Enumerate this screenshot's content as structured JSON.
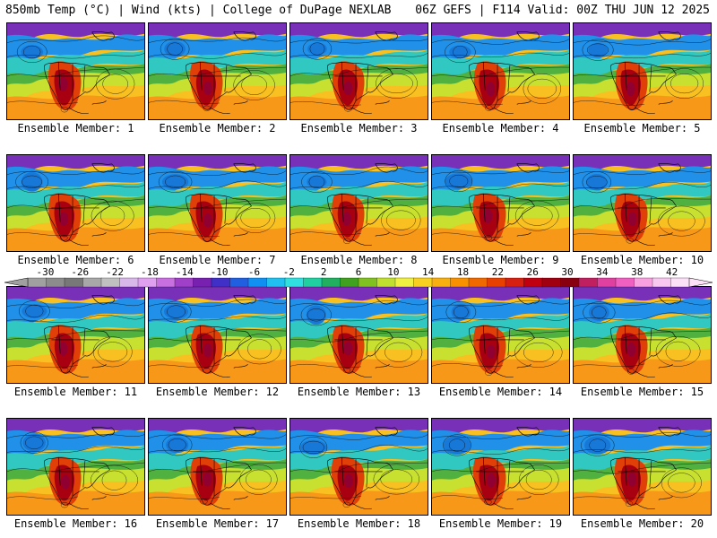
{
  "header": {
    "left": "850mb Temp (°C) | Wind (kts) | College of DuPage NEXLAB",
    "right": "06Z GEFS | F114 Valid: 00Z THU JUN 12 2025"
  },
  "members": [
    "Ensemble Member: 1",
    "Ensemble Member: 2",
    "Ensemble Member: 3",
    "Ensemble Member: 4",
    "Ensemble Member: 5",
    "Ensemble Member: 6",
    "Ensemble Member: 7",
    "Ensemble Member: 8",
    "Ensemble Member: 9",
    "Ensemble Member: 10",
    "Ensemble Member: 11",
    "Ensemble Member: 12",
    "Ensemble Member: 13",
    "Ensemble Member: 14",
    "Ensemble Member: 15",
    "Ensemble Member: 16",
    "Ensemble Member: 17",
    "Ensemble Member: 18",
    "Ensemble Member: 19",
    "Ensemble Member: 20"
  ],
  "colorbar": {
    "tick_labels": [
      "-30",
      "-26",
      "-22",
      "-18",
      "-14",
      "-10",
      "-6",
      "-2",
      "2",
      "6",
      "10",
      "14",
      "18",
      "22",
      "26",
      "30",
      "34",
      "38",
      "42"
    ],
    "colors": [
      "#a0a0a0",
      "#8c8c8c",
      "#787878",
      "#a8a8a8",
      "#c0c0c0",
      "#d8b8e8",
      "#e0a0f0",
      "#c870e0",
      "#a040c8",
      "#7820b0",
      "#4030c8",
      "#2060e0",
      "#1090f0",
      "#20c0f0",
      "#30e0e0",
      "#20d0a0",
      "#20b060",
      "#40a020",
      "#80c020",
      "#c0e030",
      "#f0f040",
      "#f8d020",
      "#f8b010",
      "#f89000",
      "#f06800",
      "#e84000",
      "#d82010",
      "#c00010",
      "#a00010",
      "#880010",
      "#c02060",
      "#e040a0",
      "#f060c0",
      "#f8a0e0",
      "#f8c8f0",
      "#fce0f8"
    ]
  }
}
